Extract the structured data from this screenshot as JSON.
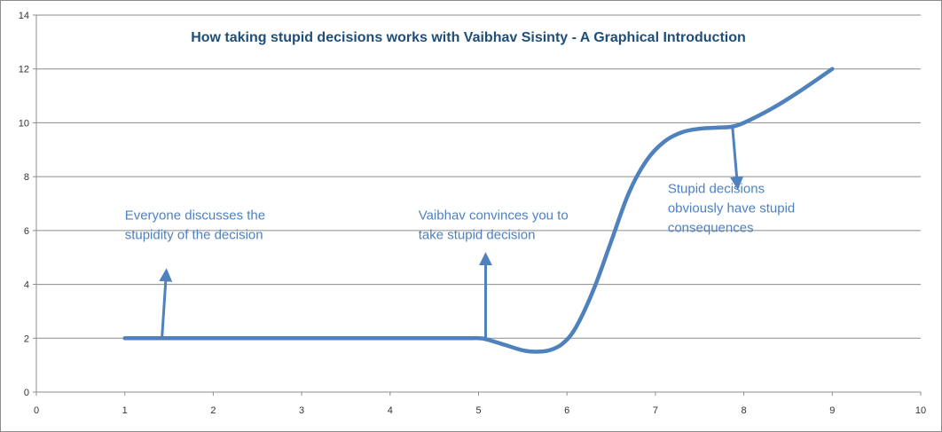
{
  "chart_data": {
    "type": "line",
    "title": "How taking stupid  decisions works with Vaibhav  Sisinty  - A Graphical  Introduction",
    "xlabel": "",
    "ylabel": "",
    "xlim": [
      0,
      10
    ],
    "ylim": [
      0,
      14
    ],
    "x_ticks": [
      0,
      1,
      2,
      3,
      4,
      5,
      6,
      7,
      8,
      9,
      10
    ],
    "y_ticks": [
      0,
      2,
      4,
      6,
      8,
      10,
      12,
      14
    ],
    "grid": "horizontal",
    "legend": "none",
    "series": [
      {
        "color": "#4f81bd",
        "points": [
          [
            1,
            2
          ],
          [
            1.5,
            2
          ],
          [
            2,
            2
          ],
          [
            3,
            2
          ],
          [
            4,
            2
          ],
          [
            4.8,
            2
          ],
          [
            5,
            2
          ],
          [
            5.1,
            1.95
          ],
          [
            5.3,
            1.75
          ],
          [
            5.5,
            1.55
          ],
          [
            5.65,
            1.5
          ],
          [
            5.8,
            1.55
          ],
          [
            5.95,
            1.8
          ],
          [
            6.1,
            2.4
          ],
          [
            6.3,
            3.8
          ],
          [
            6.5,
            5.6
          ],
          [
            6.7,
            7.4
          ],
          [
            6.9,
            8.6
          ],
          [
            7.1,
            9.3
          ],
          [
            7.3,
            9.65
          ],
          [
            7.5,
            9.78
          ],
          [
            7.7,
            9.82
          ],
          [
            7.85,
            9.85
          ],
          [
            8,
            10
          ],
          [
            8.3,
            10.5
          ],
          [
            8.6,
            11.1
          ],
          [
            9,
            12
          ]
        ]
      }
    ],
    "annotations": [
      {
        "lines": [
          "Everyone discusses the",
          "stupidity of the decision"
        ],
        "text_at": [
          1,
          6.4
        ],
        "arrow_from": [
          1.42,
          2
        ],
        "arrow_to": [
          1.47,
          4.5
        ]
      },
      {
        "lines": [
          "Vaibhav convinces you to",
          "take stupid decision"
        ],
        "text_at": [
          4.32,
          6.4
        ],
        "arrow_from": [
          5.08,
          2
        ],
        "arrow_to": [
          5.08,
          5.1
        ]
      },
      {
        "lines": [
          "Stupid decisions",
          "obviously have stupid",
          "consequences"
        ],
        "text_at": [
          7.14,
          7.4
        ],
        "arrow_from": [
          7.87,
          9.9
        ],
        "arrow_to": [
          7.93,
          7.6
        ]
      }
    ],
    "colors": {
      "series": "#4f81bd",
      "title": "#1f4e79",
      "annotation": "#4f81bd",
      "grid": "#8c8c8c",
      "axis": "#8c8c8c"
    }
  }
}
